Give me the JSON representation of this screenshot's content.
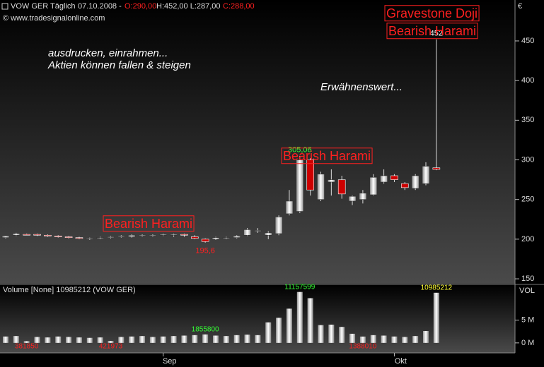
{
  "chart_data": [
    {
      "type": "candlestick",
      "title": "VOW GER Täglich",
      "date": "07.10.2008 -",
      "open_label": "O:290,00",
      "high_low_label": "H:452,00 L:287,00",
      "close_label": "C:288,00",
      "copyright": "© www.tradesignalonline.com",
      "currency": "€",
      "annotations": [
        "ausdrucken, einrahmen...",
        "Aktien können fallen & steigen",
        "Erwähnenswert...",
        "Bearish Harami",
        "Bearish Harami",
        "Gravestone Doji",
        "Bearish Harami"
      ],
      "categories": [
        null,
        null,
        null,
        null,
        null,
        null,
        null,
        null,
        null,
        null,
        null,
        null,
        null,
        null,
        null,
        null,
        null,
        null,
        null,
        null,
        null,
        null,
        null,
        null,
        null,
        null,
        null,
        null,
        null,
        null,
        null,
        null,
        null,
        null,
        null,
        null,
        null,
        null,
        null,
        null,
        null,
        null
      ],
      "open": [
        202,
        205,
        206,
        206,
        205,
        204,
        203,
        202,
        200,
        201,
        202,
        203,
        203,
        204,
        204,
        205,
        205,
        206,
        203,
        200,
        200,
        201,
        202,
        205,
        210,
        205,
        207,
        232,
        235,
        300,
        250,
        272,
        275,
        248,
        250,
        256,
        272,
        280,
        270,
        264,
        270,
        290
      ],
      "high": [
        204,
        208,
        207,
        207,
        206,
        205,
        204,
        203,
        202,
        203,
        204,
        205,
        206,
        206,
        206,
        207,
        207,
        207,
        205,
        201,
        203,
        203,
        205,
        214,
        214,
        210,
        230,
        262,
        305.06,
        302,
        285,
        288,
        280,
        255,
        262,
        282,
        288,
        282,
        272,
        282,
        297,
        452
      ],
      "low": [
        201,
        204,
        205,
        204,
        203,
        202,
        201,
        200,
        199,
        200,
        201,
        202,
        202,
        203,
        203,
        204,
        203,
        203,
        200,
        195.6,
        199,
        200,
        201,
        204,
        208,
        200,
        205,
        230,
        233,
        255,
        248,
        255,
        251,
        243,
        245,
        255,
        270,
        272,
        262,
        262,
        268,
        287
      ],
      "close": [
        204,
        207,
        205,
        205,
        204,
        203,
        202,
        201,
        201,
        202,
        203,
        204,
        205,
        205,
        205,
        206,
        206,
        205,
        201,
        197,
        202,
        202,
        204,
        212,
        211,
        208,
        228,
        248,
        300,
        262,
        282,
        275,
        257,
        254,
        258,
        278,
        280,
        275,
        265,
        280,
        292,
        288
      ],
      "high_labels": [
        null,
        null,
        null,
        null,
        null,
        null,
        null,
        null,
        null,
        null,
        null,
        null,
        null,
        null,
        null,
        null,
        null,
        null,
        null,
        null,
        null,
        null,
        null,
        null,
        null,
        null,
        null,
        null,
        "305,06",
        null,
        null,
        null,
        null,
        null,
        null,
        null,
        null,
        null,
        null,
        null,
        null,
        "452"
      ],
      "low_labels": [
        null,
        null,
        null,
        null,
        null,
        null,
        null,
        null,
        null,
        null,
        null,
        null,
        null,
        null,
        null,
        null,
        null,
        null,
        null,
        "195,6",
        null,
        null,
        null,
        null,
        null,
        null,
        null,
        null,
        null,
        null,
        null,
        null,
        null,
        null,
        null,
        null,
        null,
        null,
        null,
        null,
        null,
        null
      ],
      "up_color": "#ffffff",
      "down_color": "#cc0000",
      "ylim": [
        145.6,
        501.6
      ],
      "yticks": [
        150,
        200,
        250,
        300,
        350,
        400,
        450
      ],
      "xticks": [
        {
          "value": 15,
          "label": "Sep"
        },
        {
          "value": 37,
          "label": "Okt"
        }
      ]
    },
    {
      "type": "bar",
      "title": "Volume [None] 10985212 (VOW GER)",
      "axis_label": "VOL",
      "values": [
        1400000,
        1500000,
        381850,
        1300000,
        1200000,
        1400000,
        1300000,
        1200000,
        1100000,
        1200000,
        421973,
        1300000,
        1400000,
        1500000,
        1300000,
        1400000,
        1500000,
        1600000,
        1700000,
        1855800,
        1600000,
        1500000,
        1700000,
        1800000,
        1700000,
        4500000,
        5500000,
        7500000,
        11157599,
        9800000,
        3900000,
        4000000,
        3500000,
        2000000,
        1388010,
        1700000,
        1600000,
        1400000,
        1300000,
        1500000,
        2600000,
        10985212
      ],
      "value_labels": [
        null,
        null,
        "381850",
        null,
        null,
        null,
        null,
        null,
        null,
        null,
        "421973",
        null,
        null,
        null,
        null,
        null,
        null,
        null,
        null,
        "1855800",
        null,
        null,
        null,
        null,
        null,
        null,
        null,
        null,
        "11157599",
        null,
        null,
        null,
        null,
        null,
        "1388010",
        null,
        null,
        null,
        null,
        null,
        null,
        "10985212"
      ],
      "value_label_colors": [
        null,
        null,
        "#ff2020",
        null,
        null,
        null,
        null,
        null,
        null,
        null,
        "#ff2020",
        null,
        null,
        null,
        null,
        null,
        null,
        null,
        null,
        "#33ff33",
        null,
        null,
        null,
        null,
        null,
        null,
        null,
        null,
        "#33ff33",
        null,
        null,
        null,
        null,
        null,
        "#ff2020",
        null,
        null,
        null,
        null,
        null,
        null,
        "#ffff33"
      ],
      "ylim": [
        -2187500,
        12656250
      ],
      "yticks": [
        {
          "value": 0,
          "label": "0 M"
        },
        {
          "value": 5000000,
          "label": "5 M"
        }
      ]
    }
  ]
}
